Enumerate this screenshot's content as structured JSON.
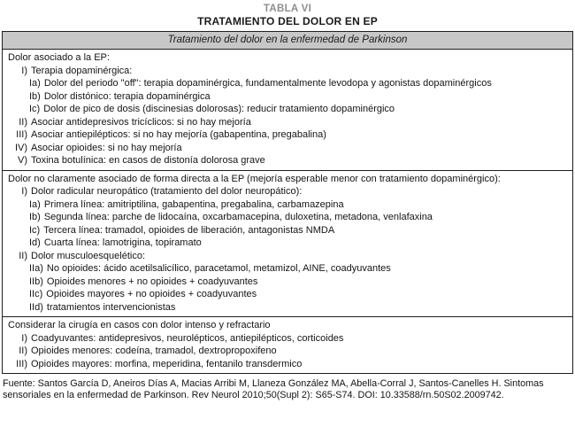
{
  "page": {
    "table_label": "TABLA VI",
    "title": "TRATAMIENTO DEL DOLOR EN EP"
  },
  "table": {
    "header": "Tratamiento del dolor en la enfermedad de Parkinson",
    "sections": [
      {
        "rows": [
          {
            "level": 0,
            "num": "",
            "text": "Dolor asociado a la EP:"
          },
          {
            "level": 1,
            "num": "I)",
            "text": "Terapia dopaminérgica:"
          },
          {
            "level": 2,
            "num": "Ia)",
            "text": "Dolor del periodo \"off\": terapia dopaminérgica, fundamentalmente levodopa y agonistas dopaminérgicos"
          },
          {
            "level": 2,
            "num": "Ib)",
            "text": "Dolor distónico: terapia dopaminérgica"
          },
          {
            "level": 2,
            "num": "Ic)",
            "text": "Dolor de pico de dosis (discinesias dolorosas): reducir tratamiento dopaminérgico"
          },
          {
            "level": 1,
            "num": "II)",
            "text": "Asociar antidepresivos tricíclicos: si no hay mejoría"
          },
          {
            "level": 1,
            "num": "III)",
            "text": "Asociar antiepilépticos: si no hay mejoría (gabapentina, pregabalina)"
          },
          {
            "level": 1,
            "num": "IV)",
            "text": "Asociar opioides: si no hay mejoría"
          },
          {
            "level": 1,
            "num": "V)",
            "text": "Toxina botulínica: en casos de distonía dolorosa grave"
          }
        ]
      },
      {
        "rows": [
          {
            "level": 0,
            "num": "",
            "text": "Dolor no claramente asociado de forma directa a la EP (mejoría esperable menor con tratamiento dopaminérgico):"
          },
          {
            "level": 1,
            "num": "I)",
            "text": "Dolor radicular neuropático (tratamiento del dolor neuropático):"
          },
          {
            "level": 2,
            "num": "Ia)",
            "text": "Primera línea: amitriptilina, gabapentina, pregabalina, carbamazepina"
          },
          {
            "level": 2,
            "num": "Ib)",
            "text": "Segunda línea: parche de lidocaína, oxcarbamacepina, duloxetina, metadona, venlafaxina"
          },
          {
            "level": 2,
            "num": "Ic)",
            "text": "Tercera línea: tramadol, opioides de liberación, antagonistas NMDA"
          },
          {
            "level": 2,
            "num": "Id)",
            "text": "Cuarta línea: lamotrigina, topiramato"
          },
          {
            "level": 1,
            "num": "II)",
            "text": "Dolor musculoesquelético:"
          },
          {
            "level": 2,
            "num": "IIa)",
            "text": "No opioides: ácido acetilsalicílico, paracetamol, metamizol, AINE, coadyuvantes"
          },
          {
            "level": 2,
            "num": "IIb)",
            "text": "Opioides menores + no opioides + coadyuvantes"
          },
          {
            "level": 2,
            "num": "IIc)",
            "text": "Opioides mayores + no opioides + coadyuvantes"
          },
          {
            "level": 2,
            "num": "IId)",
            "text": "tratamientos intervencionistas"
          }
        ]
      },
      {
        "rows": [
          {
            "level": 0,
            "num": "",
            "text": "Considerar la cirugía en casos con dolor intenso y refractario"
          },
          {
            "level": 1,
            "num": "I)",
            "text": "Coadyuvantes: antidepresivos, neurolépticos, antiepilépticos, corticoides"
          },
          {
            "level": 1,
            "num": "II)",
            "text": "Opioides menores: codeína, tramadol, dextropropoxifeno"
          },
          {
            "level": 1,
            "num": "III)",
            "text": "Opioides mayores: morfina, meperidina, fentanilo transdermico"
          }
        ]
      }
    ]
  },
  "footer": {
    "source": "Fuente: Santos García D, Aneiros Días A, Macias Arribi M, Llaneza González MA, Abella-Corral J, Santos-Canelles H. Sintomas sensoriales en la enfermedad de Parkinson. Rev Neurol 2010;50(Supl 2): S65-S74. DOI: 10.33588/rn.50S02.2009742."
  },
  "colors": {
    "header_bg": "#c7c7c7",
    "border": "#1f1f1f",
    "table_label_gray": "#8e8e8e",
    "text": "#141414"
  }
}
